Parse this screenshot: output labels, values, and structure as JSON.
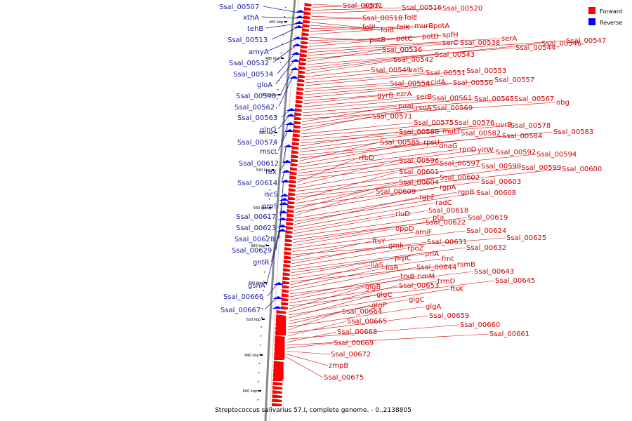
{
  "caption": "Streptococcus salivarius 57.I, complete genome. - 0..2138805",
  "legend": [
    {
      "label": "Forward",
      "color": "#ff0000"
    },
    {
      "label": "Reverse",
      "color": "#0000ff"
    }
  ],
  "colors": {
    "forward": "#ff0000",
    "forward_line": "#cc0000",
    "reverse": "#0000ff",
    "reverse_line": "#1a1aa0",
    "backbone": "#888888"
  },
  "ticks": [
    "460 kbp",
    "480 kbp",
    "500 kbp",
    "520 kbp",
    "540 kbp",
    "560 kbp",
    "580 kbp",
    "600 kbp",
    "620 kbp",
    "640 kbp",
    "660 kbp"
  ],
  "reverse_genes": [
    "Ssal_00507",
    "xthA",
    "tehB",
    "Ssal_00513",
    "amyA",
    "Ssal_00532",
    "Ssal_00534",
    "gloA",
    "Ssal_00540",
    "Ssal_00562",
    "Ssal_00563",
    "glnQ",
    "Ssal_00574",
    "mscL",
    "Ssal_00612",
    "rex",
    "Ssal_00614",
    "iscS",
    "prpS",
    "Ssal_00617",
    "Ssal_00623",
    "Ssal_00628",
    "Ssal_00629",
    "gntR",
    "gshA",
    "Ssal_00666",
    "Ssal_00667"
  ],
  "forward_genes": [
    "Ssal_00511",
    "agrA",
    "Ssal_00516",
    "Ssal_00520",
    "Ssal_00518",
    "folE",
    "folP",
    "folB",
    "folK",
    "murB",
    "potA",
    "potB",
    "potC",
    "potD",
    "spfH",
    "serA",
    "serC",
    "Ssal_00538",
    "Ssal_00547",
    "Ssal_00536",
    "Ssal_00544",
    "Ssal_00546",
    "Ssal_00542",
    "Ssal_00543",
    "Ssal_00549",
    "valS",
    "Ssal_00551",
    "Ssal_00553",
    "Ssal_00554",
    "cidA",
    "Ssal_00556",
    "Ssal_00557",
    "gyrB",
    "ezrA",
    "serB",
    "Ssal_00561",
    "Ssal_00565",
    "Ssal_00567",
    "obg",
    "paaI",
    "rsuA",
    "Ssal_00569",
    "Ssal_00571",
    "Ssal_00575",
    "Ssal_00576",
    "uvrB",
    "Ssal_00578",
    "Ssal_00580",
    "mutT",
    "Ssal_00582",
    "Ssal_00583",
    "Ssal_00584",
    "Ssal_00585",
    "rpsU",
    "dnaG",
    "rpoD",
    "yitW",
    "Ssal_00592",
    "Ssal_00594",
    "rfbD",
    "Ssal_00596",
    "Ssal_00597",
    "Ssal_00598",
    "Ssal_00599",
    "Ssal_00600",
    "Ssal_00601",
    "Ssal_00602",
    "Ssal_00603",
    "Ssal_00604",
    "rgpA",
    "Ssal_00609",
    "rgpB",
    "Ssal_00608",
    "rgpF",
    "radC",
    "rluD",
    "Ssal_00618",
    "pta",
    "Ssal_00619",
    "Ssal_00622",
    "oppD",
    "amiF",
    "Ssal_00624",
    "Ssal_00625",
    "ftsY",
    "Ssal_00631",
    "gmk",
    "rpoZ",
    "Ssal_00632",
    "priA",
    "prpC",
    "fmt",
    "rsmB",
    "liaS",
    "liaR",
    "Ssal_00644",
    "Ssal_00643",
    "trxB",
    "rimM",
    "trmD",
    "Ssal_00645",
    "glgB",
    "Ssal_00653",
    "ftsK",
    "glgC",
    "glgC",
    "glgP",
    "glgA",
    "Ssal_00664",
    "Ssal_00659",
    "Ssal_00665",
    "Ssal_00660",
    "Ssal_00668",
    "Ssal_00661",
    "Ssal_00669",
    "Ssal_00672",
    "zmpB",
    "Ssal_00675"
  ]
}
